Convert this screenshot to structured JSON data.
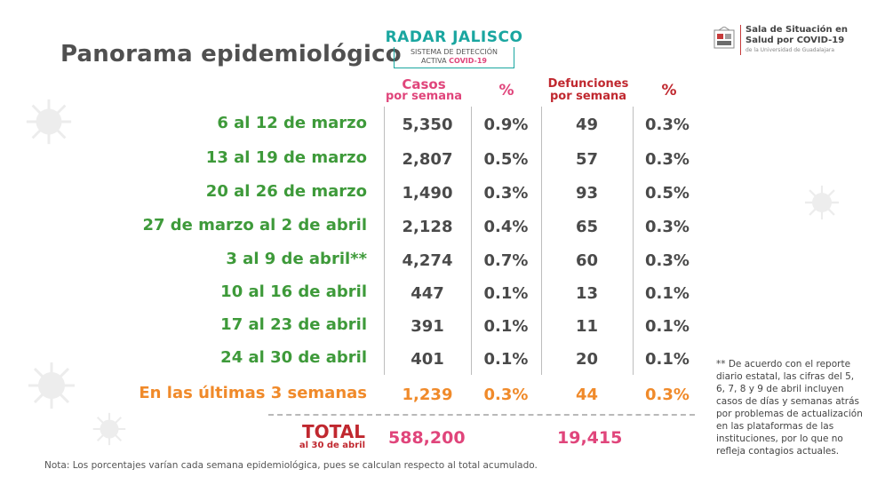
{
  "title": "Panorama epidemiológico",
  "radar": {
    "title": "RADAR JALISCO",
    "line1": "SISTEMA DE DETECCIÓN",
    "line2a": "ACTIVA ",
    "line2b": "COVID-19"
  },
  "logo": {
    "line1": "Sala de Situación en",
    "line2": "Salud por COVID-19",
    "line3": "de la Universidad de Guadalajara"
  },
  "headers": {
    "casos_1": "Casos",
    "casos_2": "por semana",
    "pct": "%",
    "def_1": "Defunciones",
    "def_2": "por semana",
    "pct2": "%"
  },
  "rows": [
    {
      "label": "6 al 12 de marzo",
      "casos": "5,350",
      "pct_casos": "0.9%",
      "defunciones": "49",
      "pct_def": "0.3%"
    },
    {
      "label": "13 al 19 de marzo",
      "casos": "2,807",
      "pct_casos": "0.5%",
      "defunciones": "57",
      "pct_def": "0.3%"
    },
    {
      "label": "20 al 26 de marzo",
      "casos": "1,490",
      "pct_casos": "0.3%",
      "defunciones": "93",
      "pct_def": "0.5%"
    },
    {
      "label": "27 de marzo al 2 de abril",
      "casos": "2,128",
      "pct_casos": "0.4%",
      "defunciones": "65",
      "pct_def": "0.3%"
    },
    {
      "label": "3 al 9 de abril**",
      "casos": "4,274",
      "pct_casos": "0.7%",
      "defunciones": "60",
      "pct_def": "0.3%"
    },
    {
      "label": "10 al 16 de abril",
      "casos": "447",
      "pct_casos": "0.1%",
      "defunciones": "13",
      "pct_def": "0.1%"
    },
    {
      "label": "17 al 23 de abril",
      "casos": "391",
      "pct_casos": "0.1%",
      "defunciones": "11",
      "pct_def": "0.1%"
    },
    {
      "label": "24 al 30 de abril",
      "casos": "401",
      "pct_casos": "0.1%",
      "defunciones": "20",
      "pct_def": "0.1%"
    }
  ],
  "summary": {
    "label": "En las últimas 3 semanas",
    "casos": "1,239",
    "pct_casos": "0.3%",
    "defunciones": "44",
    "pct_def": "0.3%"
  },
  "total": {
    "label": "TOTAL",
    "sublabel": "al 30 de abril",
    "casos": "588,200",
    "defunciones": "19,415"
  },
  "footnote": "** De acuerdo con el reporte diario estatal, las cifras del 5, 6, 7, 8 y 9 de abril incluyen casos de días y semanas atrás por problemas de actualización en las plataformas de las instituciones, por lo que no refleja contagios actuales.",
  "note": "Nota: Los porcentajes varían cada semana epidemiológica, pues se calculan respecto al total acumulado.",
  "colors": {
    "row_label": "#3e9a3a",
    "summary": "#f08a2a",
    "header_pink": "#e0457b",
    "header_red": "#c0282f",
    "radar_teal": "#1aa6a0"
  }
}
